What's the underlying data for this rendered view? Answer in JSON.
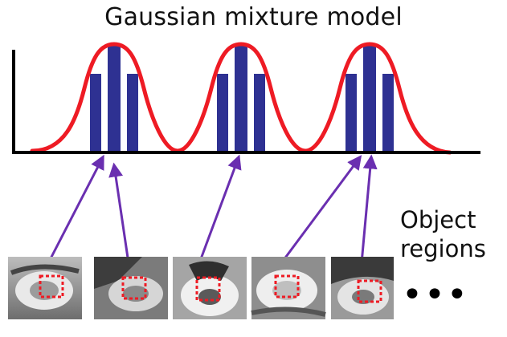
{
  "title": "Gaussian mixture model",
  "objects_label": {
    "line1": "Object",
    "line2": "regions"
  },
  "continuation_marker": "•••",
  "colors": {
    "curve": "#ee1b24",
    "bars": "#2e3192",
    "arrows": "#6a2fb0",
    "axis": "#000000",
    "patch_box": "#ee1b24"
  },
  "components": 3,
  "object_region_thumbnails": 5
}
